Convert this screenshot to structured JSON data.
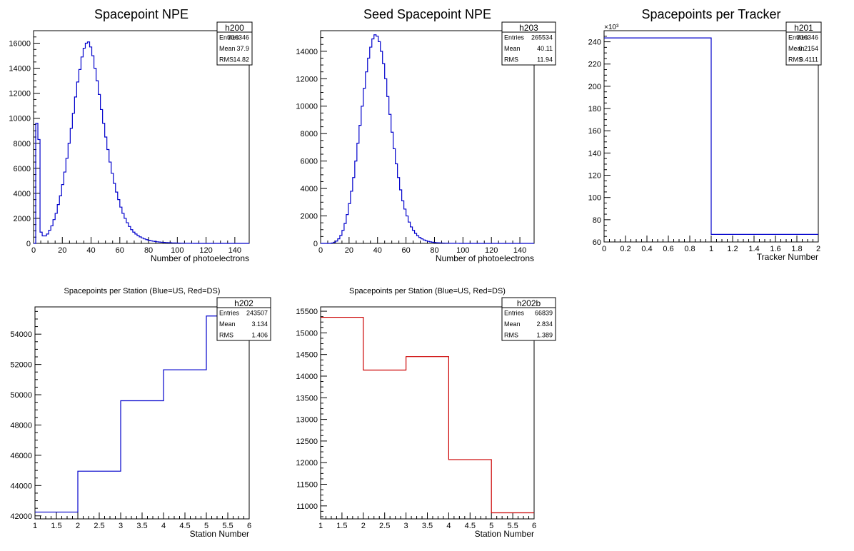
{
  "colors": {
    "blue": "#0000cc",
    "red": "#cc0000",
    "axis": "#000000"
  },
  "chart_data": [
    {
      "id": "h200",
      "type": "histogram",
      "title": "Spacepoint NPE",
      "xlabel": "Number of photoelectrons",
      "ylabel": "",
      "xlim": [
        0,
        150
      ],
      "ylim": [
        0,
        17000
      ],
      "xticks": [
        0,
        20,
        40,
        60,
        80,
        100,
        120,
        140
      ],
      "yticks": [
        0,
        2000,
        4000,
        6000,
        8000,
        10000,
        12000,
        14000,
        16000
      ],
      "bin_width": 1.5,
      "color": "#0000cc",
      "values": [
        0,
        9600,
        8300,
        900,
        600,
        600,
        750,
        1050,
        1400,
        1900,
        2400,
        3100,
        3800,
        4700,
        5700,
        6800,
        8000,
        9200,
        10400,
        11700,
        12900,
        13900,
        14900,
        15600,
        16000,
        16100,
        15700,
        15000,
        14000,
        13000,
        11900,
        10700,
        9600,
        8500,
        7500,
        6500,
        5600,
        4800,
        4100,
        3500,
        2900,
        2400,
        2000,
        1650,
        1350,
        1100,
        900,
        750,
        620,
        520,
        430,
        360,
        300,
        250,
        210,
        175,
        150,
        125,
        105,
        90,
        78,
        67,
        57,
        48,
        40,
        34,
        28,
        23,
        18,
        14,
        11,
        8,
        6,
        4,
        2,
        1,
        0,
        0,
        0,
        0,
        0,
        0,
        0,
        0,
        0,
        0,
        0,
        0,
        0,
        0,
        0,
        0,
        0,
        0,
        0,
        0,
        0,
        0,
        0,
        0
      ],
      "stats": {
        "name": "h200",
        "rows": [
          [
            "Entries",
            "310346"
          ],
          [
            "Mean",
            "37.9"
          ],
          [
            "RMS",
            "14.82"
          ]
        ]
      }
    },
    {
      "id": "h203",
      "type": "histogram",
      "title": "Seed Spacepoint NPE",
      "xlabel": "Number of photoelectrons",
      "ylabel": "",
      "xlim": [
        0,
        150
      ],
      "ylim": [
        0,
        15500
      ],
      "xticks": [
        0,
        20,
        40,
        60,
        80,
        100,
        120,
        140
      ],
      "yticks": [
        0,
        2000,
        4000,
        6000,
        8000,
        10000,
        12000,
        14000
      ],
      "bin_width": 1.5,
      "color": "#0000cc",
      "values": [
        0,
        0,
        0,
        0,
        0,
        30,
        80,
        170,
        330,
        580,
        950,
        1450,
        2100,
        2900,
        3800,
        4800,
        6000,
        7300,
        8600,
        10000,
        11300,
        12500,
        13500,
        14300,
        14900,
        15200,
        15100,
        14700,
        14000,
        13100,
        12000,
        10700,
        9400,
        8100,
        6900,
        5800,
        4800,
        3900,
        3100,
        2500,
        2000,
        1550,
        1200,
        950,
        730,
        560,
        430,
        330,
        250,
        190,
        145,
        110,
        85,
        65,
        50,
        38,
        29,
        22,
        17,
        13,
        10,
        7,
        5,
        3,
        2,
        1,
        0,
        0,
        0,
        0,
        0,
        0,
        0,
        0,
        0,
        0,
        0,
        0,
        0,
        0,
        0,
        0,
        0,
        0,
        0,
        0,
        0,
        0,
        0,
        0,
        0,
        0,
        0,
        0,
        0,
        0,
        0,
        0,
        0,
        0
      ],
      "stats": {
        "name": "h203",
        "rows": [
          [
            "Entries",
            "265534"
          ],
          [
            "Mean",
            "40.11"
          ],
          [
            "RMS",
            "11.94"
          ]
        ]
      }
    },
    {
      "id": "h201",
      "type": "histogram",
      "title": "Spacepoints per Tracker",
      "xlabel": "Tracker Number",
      "ylabel": "",
      "exponent_label": "×10³",
      "xlim": [
        0,
        2
      ],
      "ylim": [
        60,
        250
      ],
      "xticks": [
        0,
        0.2,
        0.4,
        0.6,
        0.8,
        1,
        1.2,
        1.4,
        1.6,
        1.8,
        2
      ],
      "xticklabels": [
        "0",
        "0.2",
        "0.4",
        "0.6",
        "0.8",
        "1",
        "1.2",
        "1.4",
        "1.6",
        "1.8",
        "2"
      ],
      "yticks": [
        60,
        80,
        100,
        120,
        140,
        160,
        180,
        200,
        220,
        240
      ],
      "bin_edges": [
        0,
        1,
        2
      ],
      "color": "#0000cc",
      "values": [
        243.5,
        66.8
      ],
      "stats": {
        "name": "h201",
        "rows": [
          [
            "Entries",
            "310346"
          ],
          [
            "Mean",
            "0.2154"
          ],
          [
            "RMS",
            "0.4111"
          ]
        ]
      }
    },
    {
      "id": "h202",
      "type": "histogram",
      "title": "Spacepoints per Station (Blue=US, Red=DS)",
      "xlabel": "Station Number",
      "ylabel": "",
      "xlim": [
        1,
        6
      ],
      "ylim": [
        41800,
        55800
      ],
      "xticks": [
        1,
        1.5,
        2,
        2.5,
        3,
        3.5,
        4,
        4.5,
        5,
        5.5,
        6
      ],
      "xticklabels": [
        "1",
        "1.5",
        "2",
        "2.5",
        "3",
        "3.5",
        "4",
        "4.5",
        "5",
        "5.5",
        "6"
      ],
      "yticks": [
        42000,
        44000,
        46000,
        48000,
        50000,
        52000,
        54000
      ],
      "bin_edges": [
        1,
        2,
        3,
        4,
        5,
        6
      ],
      "color": "#0000cc",
      "values": [
        42250,
        44950,
        49600,
        51650,
        55200
      ],
      "stats": {
        "name": "h202",
        "rows": [
          [
            "Entries",
            "243507"
          ],
          [
            "Mean",
            "3.134"
          ],
          [
            "RMS",
            "1.406"
          ]
        ]
      }
    },
    {
      "id": "h202b",
      "type": "histogram",
      "title": "Spacepoints per Station (Blue=US, Red=DS)",
      "xlabel": "Station Number",
      "ylabel": "",
      "xlim": [
        1,
        6
      ],
      "ylim": [
        10700,
        15600
      ],
      "xticks": [
        1,
        1.5,
        2,
        2.5,
        3,
        3.5,
        4,
        4.5,
        5,
        5.5,
        6
      ],
      "xticklabels": [
        "1",
        "1.5",
        "2",
        "2.5",
        "3",
        "3.5",
        "4",
        "4.5",
        "5",
        "5.5",
        "6"
      ],
      "yticks": [
        11000,
        11500,
        12000,
        12500,
        13000,
        13500,
        14000,
        14500,
        15000,
        15500
      ],
      "bin_edges": [
        1,
        2,
        3,
        4,
        5,
        6
      ],
      "color": "#cc0000",
      "values": [
        15360,
        14140,
        14450,
        12070,
        10840
      ],
      "stats": {
        "name": "h202b",
        "rows": [
          [
            "Entries",
            "66839"
          ],
          [
            "Mean",
            "2.834"
          ],
          [
            "RMS",
            "1.389"
          ]
        ]
      }
    }
  ]
}
